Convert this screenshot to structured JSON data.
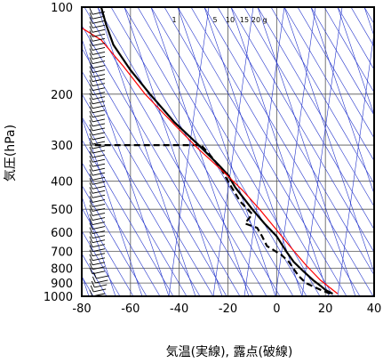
{
  "chart_data": {
    "type": "line",
    "title": "",
    "xlabel": "気温(実線), 露点(破線)",
    "ylabel": "気圧(hPa)",
    "xlim": [
      -80,
      40
    ],
    "ylim": [
      1000,
      100
    ],
    "y_scale": "log",
    "x_ticks": [
      -80,
      -60,
      -40,
      -20,
      0,
      20,
      40
    ],
    "y_ticks": [
      100,
      200,
      300,
      400,
      500,
      600,
      700,
      800,
      900,
      1000
    ],
    "mixing_ratio_labels": [
      "1",
      "5",
      "10",
      "15",
      "20",
      "g"
    ],
    "series": [
      {
        "style": "solid",
        "color": "#000000",
        "points": [
          {
            "t": 23,
            "p": 980
          },
          {
            "t": 20,
            "p": 950
          },
          {
            "t": 18,
            "p": 920
          },
          {
            "t": 15,
            "p": 880
          },
          {
            "t": 11,
            "p": 820
          },
          {
            "t": 7,
            "p": 760
          },
          {
            "t": 4,
            "p": 700
          },
          {
            "t": 0,
            "p": 620
          },
          {
            "t": -5,
            "p": 560
          },
          {
            "t": -10,
            "p": 500
          },
          {
            "t": -17,
            "p": 420
          },
          {
            "t": -20,
            "p": 380
          },
          {
            "t": -24,
            "p": 350
          },
          {
            "t": -32,
            "p": 300
          },
          {
            "t": -42,
            "p": 250
          },
          {
            "t": -52,
            "p": 200
          },
          {
            "t": -60,
            "p": 165
          },
          {
            "t": -67,
            "p": 135
          },
          {
            "t": -70,
            "p": 115
          },
          {
            "t": -72,
            "p": 100
          }
        ]
      },
      {
        "style": "dashed",
        "color": "#000000",
        "points": [
          {
            "t": 22,
            "p": 980
          },
          {
            "t": 18,
            "p": 950
          },
          {
            "t": 12,
            "p": 900
          },
          {
            "t": 9,
            "p": 850
          },
          {
            "t": 5,
            "p": 760
          },
          {
            "t": 2,
            "p": 720
          },
          {
            "t": -4,
            "p": 670
          },
          {
            "t": -6,
            "p": 620
          },
          {
            "t": -8,
            "p": 580
          },
          {
            "t": -13,
            "p": 560
          },
          {
            "t": -10,
            "p": 520
          },
          {
            "t": -15,
            "p": 470
          },
          {
            "t": -20,
            "p": 400
          },
          {
            "t": -23,
            "p": 360
          },
          {
            "t": -28,
            "p": 320
          },
          {
            "t": -31,
            "p": 300
          },
          {
            "t": -45,
            "p": 300
          },
          {
            "t": -60,
            "p": 300
          },
          {
            "t": -76,
            "p": 300
          }
        ]
      },
      {
        "style": "solid",
        "color": "#ff0000",
        "points": [
          {
            "t": 25,
            "p": 980
          },
          {
            "t": 18,
            "p": 880
          },
          {
            "t": 12,
            "p": 780
          },
          {
            "t": 6,
            "p": 680
          },
          {
            "t": 0,
            "p": 590
          },
          {
            "t": -7,
            "p": 500
          },
          {
            "t": -14,
            "p": 430
          },
          {
            "t": -22,
            "p": 370
          },
          {
            "t": -32,
            "p": 310
          },
          {
            "t": -42,
            "p": 255
          },
          {
            "t": -54,
            "p": 200
          },
          {
            "t": -63,
            "p": 160
          },
          {
            "t": -72,
            "p": 130
          },
          {
            "t": -80,
            "p": 118
          }
        ]
      }
    ],
    "grid": true,
    "guide_line_color": "#2233cc"
  }
}
